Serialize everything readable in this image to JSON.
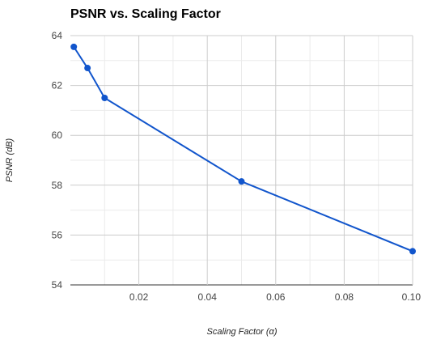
{
  "chart_data": {
    "type": "line",
    "title": "PSNR vs. Scaling Factor",
    "xlabel": "Scaling Factor (α)",
    "ylabel": "PSNR (dB)",
    "xlim": [
      0,
      0.1
    ],
    "ylim": [
      54,
      64
    ],
    "x_ticks": [
      0.02,
      0.04,
      0.06,
      0.08,
      0.1
    ],
    "x_tick_labels": [
      "0.02",
      "0.04",
      "0.06",
      "0.08",
      "0.10"
    ],
    "y_ticks": [
      54,
      56,
      58,
      60,
      62,
      64
    ],
    "y_tick_labels": [
      "54",
      "56",
      "58",
      "60",
      "62",
      "64"
    ],
    "grid": true,
    "legend": "none",
    "series": [
      {
        "color": "#1155cc",
        "x": [
          0.001,
          0.005,
          0.01,
          0.05,
          0.1
        ],
        "y": [
          63.55,
          62.7,
          61.5,
          58.15,
          55.35
        ]
      }
    ]
  }
}
